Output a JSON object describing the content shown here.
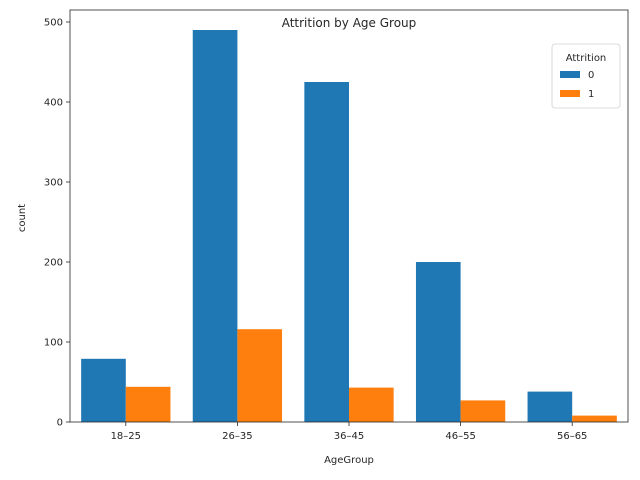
{
  "chart_data": {
    "type": "bar",
    "title": "Attrition by Age Group",
    "xlabel": "AgeGroup",
    "ylabel": "count",
    "categories": [
      "18–25",
      "26–35",
      "36–45",
      "46–55",
      "56–65"
    ],
    "series": [
      {
        "name": "0",
        "color": "#1f77b4",
        "values": [
          79,
          490,
          425,
          200,
          38
        ]
      },
      {
        "name": "1",
        "color": "#ff7f0e",
        "values": [
          44,
          116,
          43,
          27,
          8
        ]
      }
    ],
    "ylim": [
      0,
      515
    ],
    "yticks": [
      0,
      100,
      200,
      300,
      400,
      500
    ],
    "legend": {
      "title": "Attrition",
      "position": "top-right"
    },
    "grid": false
  }
}
